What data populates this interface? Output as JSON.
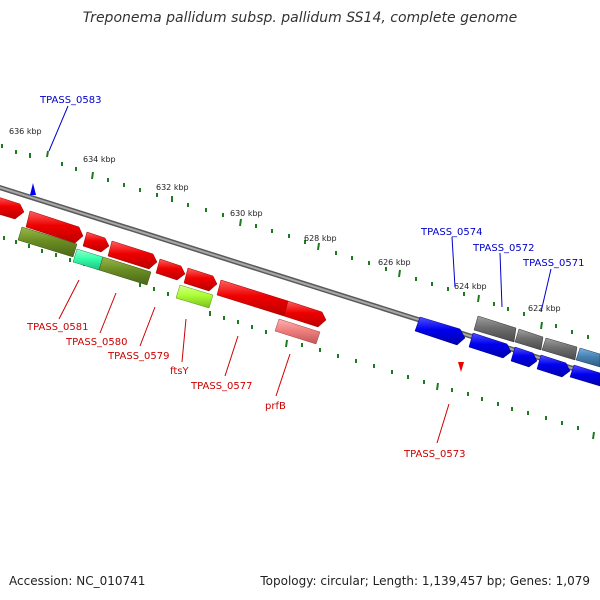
{
  "title": "Treponema pallidum subsp. pallidum SS14, complete genome",
  "footer": {
    "accession": "Accession: NC_010741",
    "summary": "Topology: circular; Length: 1,139,457 bp; Genes: 1,079"
  },
  "scale_labels": [
    "636 kbp",
    "634 kbp",
    "632 kbp",
    "630 kbp",
    "628 kbp",
    "626 kbp",
    "624 kbp",
    "622 kbp"
  ],
  "genes_forward": [
    {
      "label": "TPASS_0583",
      "color": "#0000cc"
    },
    {
      "label": "TPASS_0574",
      "color": "#0000cc"
    },
    {
      "label": "TPASS_0572",
      "color": "#0000cc"
    },
    {
      "label": "TPASS_0571",
      "color": "#0000cc"
    }
  ],
  "genes_reverse": [
    {
      "label": "TPASS_0581",
      "color": "#cc0000"
    },
    {
      "label": "TPASS_0580",
      "color": "#cc0000"
    },
    {
      "label": "TPASS_0579",
      "color": "#cc0000"
    },
    {
      "label": "ftsY",
      "color": "#cc0000"
    },
    {
      "label": "TPASS_0577",
      "color": "#cc0000"
    },
    {
      "label": "prfB",
      "color": "#cc0000"
    },
    {
      "label": "TPASS_0573",
      "color": "#cc0000"
    }
  ],
  "colors": {
    "backbone": "#8a8a8a",
    "tick": "#1e7a1e",
    "red_gene": "#ee0000",
    "blue_gene": "#0000ee",
    "gray_gene": "#6e6e6e",
    "olive_gene": "#6b8e23",
    "teal_gene": "#33ffaa",
    "lime_gene": "#aaff33",
    "pink_gene": "#f08080",
    "steel_gene": "#4682b4"
  }
}
